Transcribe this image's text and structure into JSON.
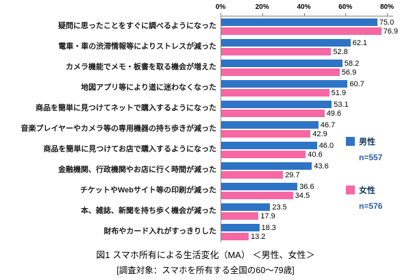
{
  "chart_data": {
    "type": "bar",
    "orientation": "horizontal",
    "title": "図1 スマホ所有による生活変化（MA） ＜男性、女性＞",
    "subtitle": "[調査対象：スマホを所有する全国の60～79歳]",
    "x_ticks": [
      "0%",
      "20%",
      "40%",
      "60%",
      "80%"
    ],
    "xlim": [
      0,
      80
    ],
    "legend_position": "right",
    "categories": [
      "疑問に思ったことをすぐに調べるようになった",
      "電車・車の渋滞情報等によりストレスが減った",
      "カメラ機能でメモ・板書を取る機会が増えた",
      "地図アプリ等により道に迷わなくなった",
      "商品を簡単に見つけてネットで購入するようになった",
      "音楽プレイヤーやカメラ等の専用機器の持ち歩きが減った",
      "商品を簡単に見つけてお店で購入するようになった",
      "金融機関、行政機関やお店に行く時間が減った",
      "チケットやWebサイト等の印刷が減った",
      "本、雑誌、新聞を持ち歩く機会が減った",
      "財布やカード入れがすっきりした"
    ],
    "series": [
      {
        "name": "男性",
        "n_label": "n=557",
        "color": "#2e74c6",
        "values": [
          75.0,
          62.1,
          58.2,
          60.7,
          53.1,
          46.7,
          46.0,
          43.6,
          36.6,
          23.5,
          18.3
        ]
      },
      {
        "name": "女性",
        "n_label": "n=576",
        "color": "#f668a4",
        "values": [
          76.9,
          52.8,
          56.9,
          51.9,
          49.6,
          42.9,
          40.6,
          29.7,
          34.5,
          17.9,
          13.2
        ]
      }
    ]
  }
}
